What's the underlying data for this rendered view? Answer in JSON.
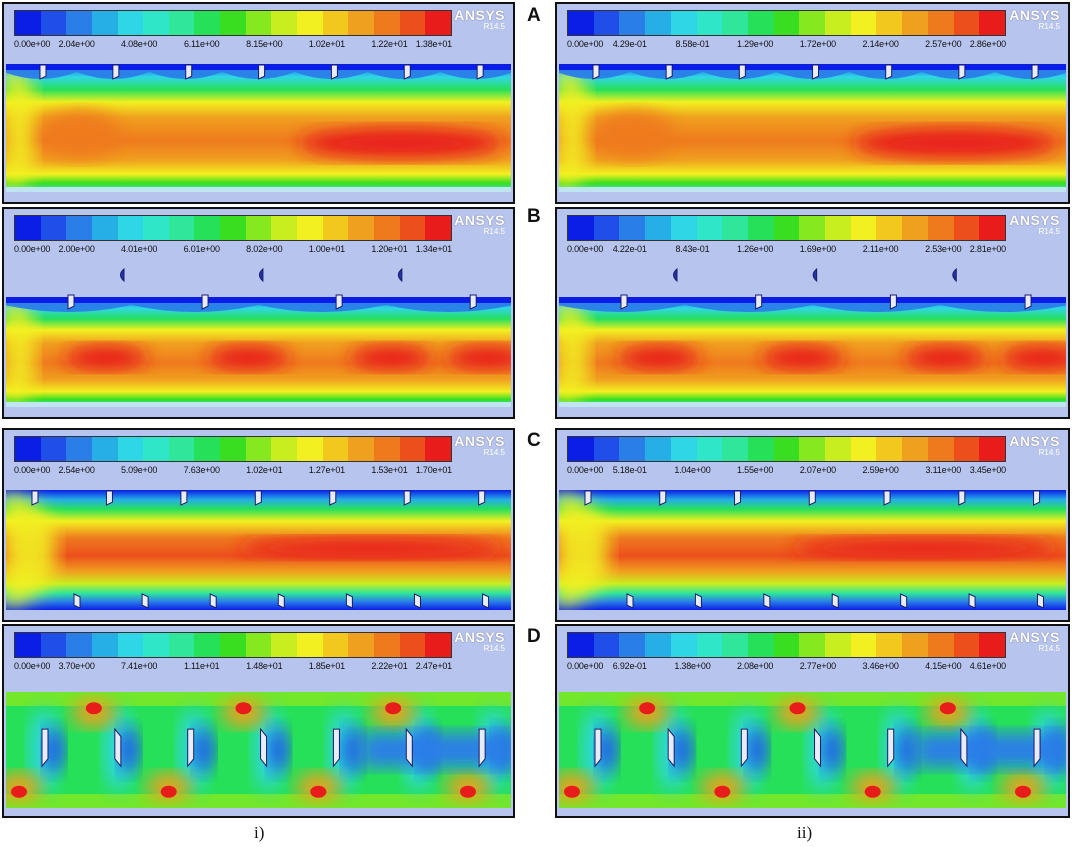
{
  "brand": {
    "name": "ANSYS",
    "version": "R14.5"
  },
  "legend_colors": [
    "#0a1ee6",
    "#1f4fe8",
    "#2a7ee8",
    "#26aee6",
    "#2fd6e6",
    "#2fe6c8",
    "#2fe69a",
    "#27e05a",
    "#3ade20",
    "#86e81f",
    "#c8ee20",
    "#f2f020",
    "#f2c81f",
    "#f0a01f",
    "#ef7a1e",
    "#ec4f1c",
    "#e81c1a"
  ],
  "row_labels": [
    "A",
    "B",
    "C",
    "D"
  ],
  "column_labels": [
    "i)",
    "ii)"
  ],
  "panels": [
    {
      "id": "A-i",
      "ticks": [
        "0.00e+00",
        "2.04e+00",
        "4.08e+00",
        "6.11e+00",
        "8.15e+00",
        "1.02e+01",
        "1.22e+01",
        "1.38e+01"
      ]
    },
    {
      "id": "A-ii",
      "ticks": [
        "0.00e+00",
        "4.29e-01",
        "8.58e-01",
        "1.29e+00",
        "1.72e+00",
        "2.14e+00",
        "2.57e+00",
        "2.86e+00"
      ]
    },
    {
      "id": "B-i",
      "ticks": [
        "0.00e+00",
        "2.00e+00",
        "4.01e+00",
        "6.01e+00",
        "8.02e+00",
        "1.00e+01",
        "1.20e+01",
        "1.34e+01"
      ]
    },
    {
      "id": "B-ii",
      "ticks": [
        "0.00e+00",
        "4.22e-01",
        "8.43e-01",
        "1.26e+00",
        "1.69e+00",
        "2.11e+00",
        "2.53e+00",
        "2.81e+00"
      ]
    },
    {
      "id": "C-i",
      "ticks": [
        "0.00e+00",
        "2.54e+00",
        "5.09e+00",
        "7.63e+00",
        "1.02e+01",
        "1.27e+01",
        "1.53e+01",
        "1.70e+01"
      ]
    },
    {
      "id": "C-ii",
      "ticks": [
        "0.00e+00",
        "5.18e-01",
        "1.04e+00",
        "1.55e+00",
        "2.07e+00",
        "2.59e+00",
        "3.11e+00",
        "3.45e+00"
      ]
    },
    {
      "id": "D-i",
      "ticks": [
        "0.00e+00",
        "3.70e+00",
        "7.41e+00",
        "1.11e+01",
        "1.48e+01",
        "1.85e+01",
        "2.22e+01",
        "2.47e+01"
      ]
    },
    {
      "id": "D-ii",
      "ticks": [
        "0.00e+00",
        "6.92e-01",
        "1.38e+00",
        "2.08e+00",
        "2.77e+00",
        "3.46e+00",
        "4.15e+00",
        "4.61e+00"
      ]
    }
  ]
}
